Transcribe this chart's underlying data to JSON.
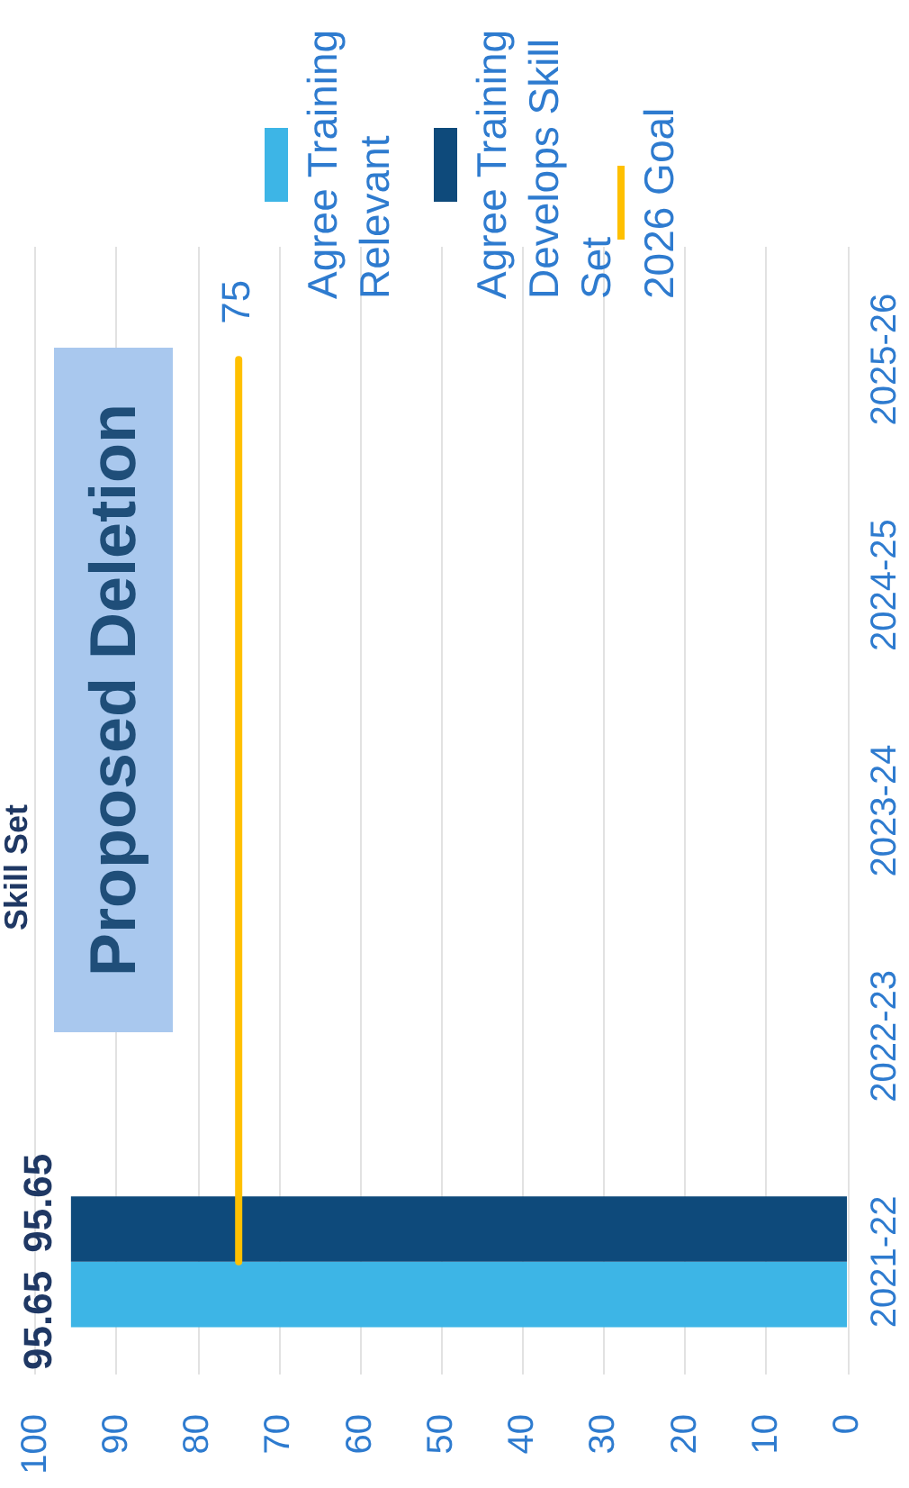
{
  "chart_data": {
    "type": "bar",
    "orientation": "horizontal",
    "title": "Skill Set",
    "categories": [
      "2025-26",
      "2024-25",
      "2023-24",
      "2022-23",
      "2021-22"
    ],
    "series": [
      {
        "name": "Agree Training Relevant",
        "color": "#3db5e6",
        "values": [
          null,
          null,
          null,
          null,
          95.65
        ],
        "value_labels": [
          null,
          null,
          null,
          null,
          "95.65"
        ]
      },
      {
        "name": "Agree Training Develops Skill Set",
        "color": "#0e4a7b",
        "values": [
          null,
          null,
          null,
          null,
          95.65
        ],
        "value_labels": [
          null,
          null,
          null,
          null,
          "95.65"
        ]
      },
      {
        "name": "2026 Goal",
        "type": "line",
        "color": "#ffc000",
        "values": [
          75,
          75,
          75,
          75,
          75
        ],
        "value_labels": [
          "75",
          null,
          null,
          null,
          null
        ]
      }
    ],
    "xlim": [
      100,
      0
    ],
    "xticks": [
      100,
      90,
      80,
      70,
      60,
      50,
      40,
      30,
      20,
      10,
      0
    ],
    "grid": "x",
    "legend": "top",
    "annotations": [
      "Proposed Deletion"
    ]
  }
}
